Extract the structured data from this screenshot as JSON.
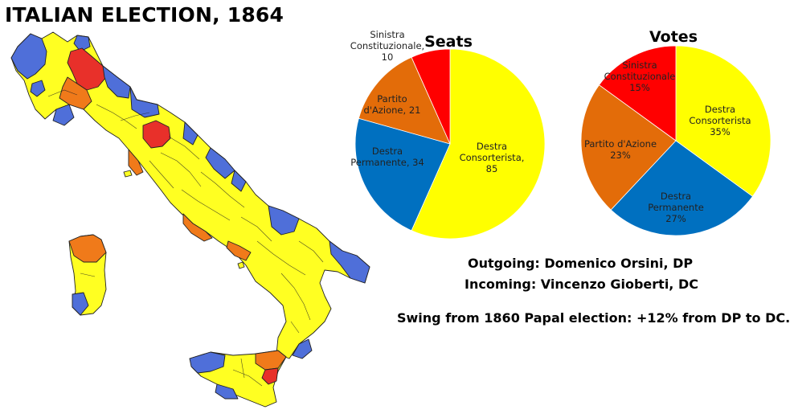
{
  "title": "ITALIAN ELECTION, 1864",
  "colors": {
    "destra_consorterista": "#ffff00",
    "destra_permanente": "#0070c0",
    "partito_d_azione": "#e36c09",
    "sinistra_constituzionale": "#ff0000",
    "region_blue": "#4f6fd9",
    "region_orange": "#f07a1a",
    "region_red": "#e8302a"
  },
  "chart_data": [
    {
      "type": "pie",
      "title": "Seats",
      "slices": [
        {
          "name": "Destra Consorterista",
          "value": 85,
          "color": "#ffff00",
          "label_lines": [
            "Destra",
            "Consorterista,",
            "85"
          ]
        },
        {
          "name": "Destra Permanente",
          "value": 34,
          "color": "#0070c0",
          "label_lines": [
            "Destra",
            "Permanente, 34"
          ]
        },
        {
          "name": "Partito d'Azione",
          "value": 21,
          "color": "#e36c09",
          "label_lines": [
            "Partito",
            "d'Azione, 21"
          ]
        },
        {
          "name": "Sinistra Constituzionale",
          "value": 10,
          "color": "#ff0000",
          "label_lines": [
            "Sinistra",
            "Constituzionale,",
            "10"
          ]
        }
      ]
    },
    {
      "type": "pie",
      "title": "Votes",
      "slices": [
        {
          "name": "Destra Consorterista",
          "value": 35,
          "color": "#ffff00",
          "label_lines": [
            "Destra",
            "Consorterista",
            "35%"
          ]
        },
        {
          "name": "Destra Permanente",
          "value": 27,
          "color": "#0070c0",
          "label_lines": [
            "Destra",
            "Permanente",
            "27%"
          ]
        },
        {
          "name": "Partito d'Azione",
          "value": 23,
          "color": "#e36c09",
          "label_lines": [
            "Partito d'Azione",
            "23%"
          ]
        },
        {
          "name": "Sinistra Constituzionale",
          "value": 15,
          "color": "#ff0000",
          "label_lines": [
            "Sinistra",
            "Constituzionale",
            "15%"
          ]
        }
      ]
    }
  ],
  "info": {
    "outgoing": "Outgoing: Domenico Orsini, DP",
    "incoming": "Incoming: Vincenzo Gioberti, DC",
    "swing": "Swing from 1860 Papal election: +12% from DP to DC."
  }
}
